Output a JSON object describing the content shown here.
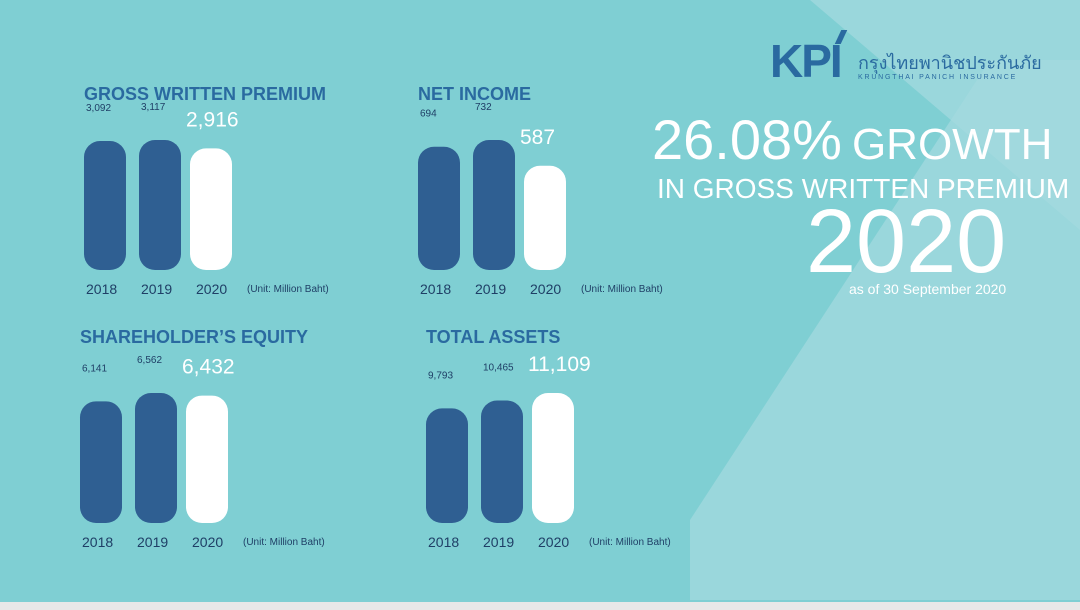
{
  "colors": {
    "background": "#7fcfd3",
    "bar_prior_years": "#2f5f92",
    "bar_current_year": "#ffffff",
    "title": "#2a6aa0"
  },
  "logo": {
    "mark": "KPI",
    "thai": "กรุงไทยพานิชประกันภัย",
    "english": "KRUNGTHAI PANICH INSURANCE"
  },
  "headline": {
    "percent": "26.08%",
    "growth": "GROWTH",
    "line2": "IN GROSS WRITTEN PREMIUM",
    "year": "2020",
    "as_of": "as of 30 September 2020"
  },
  "chart_data": [
    {
      "type": "bar",
      "title": "GROSS WRITTEN PREMIUM",
      "categories": [
        "2018",
        "2019",
        "2020"
      ],
      "values": [
        3092,
        3117,
        2916
      ],
      "value_labels": [
        "3,092",
        "3,117",
        "2,916"
      ],
      "unit": "(Unit: Million Baht)",
      "highlight": "2020"
    },
    {
      "type": "bar",
      "title": "NET INCOME",
      "categories": [
        "2018",
        "2019",
        "2020"
      ],
      "values": [
        694,
        732,
        587
      ],
      "value_labels": [
        "694",
        "732",
        "587"
      ],
      "unit": "(Unit: Million Baht)",
      "highlight": "2020"
    },
    {
      "type": "bar",
      "title": "SHAREHOLDER’S EQUITY",
      "categories": [
        "2018",
        "2019",
        "2020"
      ],
      "values": [
        6141,
        6562,
        6432
      ],
      "value_labels": [
        "6,141",
        "6,562",
        "6,432"
      ],
      "unit": "(Unit: Million Baht)",
      "highlight": "2020"
    },
    {
      "type": "bar",
      "title": "TOTAL ASSETS",
      "categories": [
        "2018",
        "2019",
        "2020"
      ],
      "values": [
        9793,
        10465,
        11109
      ],
      "value_labels": [
        "9,793",
        "10,465",
        "11,109"
      ],
      "unit": "(Unit: Million Baht)",
      "highlight": "2020"
    }
  ]
}
